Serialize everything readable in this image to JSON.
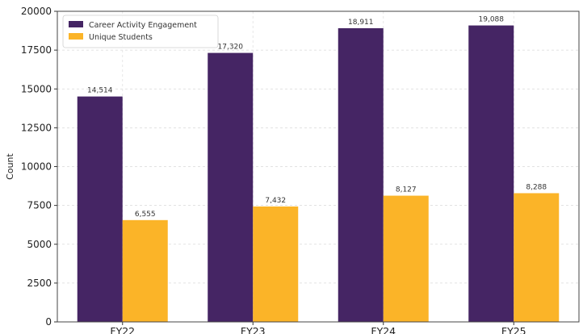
{
  "chart_data": {
    "type": "bar",
    "categories": [
      "FY22",
      "FY23",
      "FY24",
      "FY25"
    ],
    "series": [
      {
        "name": "Career Activity Engagement",
        "values": [
          14514,
          17320,
          18911,
          19088
        ],
        "labels": [
          "14,514",
          "17,320",
          "18,911",
          "19,088"
        ],
        "color": "#452564"
      },
      {
        "name": "Unique Students",
        "values": [
          6555,
          7432,
          8127,
          8288
        ],
        "labels": [
          "6,555",
          "7,432",
          "8,127",
          "8,288"
        ],
        "color": "#fbb428"
      }
    ],
    "title": "",
    "xlabel": "",
    "ylabel": "Count",
    "ylim": [
      0,
      20000
    ],
    "yticks": [
      "0",
      "2500",
      "5000",
      "7500",
      "10000",
      "12500",
      "15000",
      "17500",
      "20000"
    ],
    "grid": true,
    "legend_position": "top-left"
  }
}
